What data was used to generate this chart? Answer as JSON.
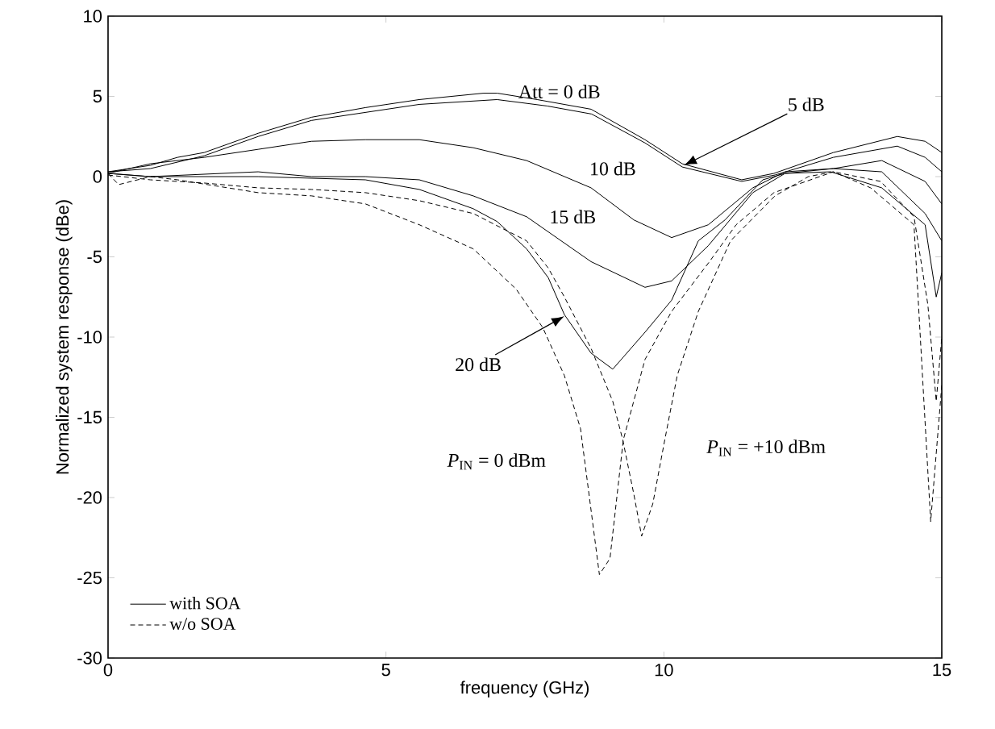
{
  "chart_data": {
    "type": "line",
    "xlabel": "frequency (GHz)",
    "ylabel": "Normalized system response (dBe)",
    "xlim": [
      0,
      15
    ],
    "ylim": [
      -30,
      10
    ],
    "xticks": [
      0,
      5,
      10,
      15
    ],
    "yticks": [
      -30,
      -25,
      -20,
      -15,
      -10,
      -5,
      0,
      5,
      10
    ],
    "legend": "bottom left",
    "series": [
      {
        "name": "with SOA",
        "color": "#000000",
        "line_style": "solid",
        "x": [
          0,
          0.76,
          1.25,
          1.73,
          2.7,
          3.66,
          4.63,
          5.6,
          6.76,
          7.0,
          7.72,
          8.69,
          9.66,
          10.33,
          11.4,
          11.98,
          13.05,
          14.2,
          14.7,
          15
        ],
        "values": [
          0.3,
          0.7,
          1.2,
          1.5,
          2.7,
          3.7,
          4.3,
          4.8,
          5.2,
          5.2,
          4.8,
          4.2,
          2.3,
          0.8,
          -0.2,
          0.2,
          1.5,
          2.5,
          2.2,
          1.5
        ]
      },
      {
        "color": "#000000",
        "line_style": "solid",
        "x": [
          0,
          0.76,
          1.73,
          2.7,
          3.66,
          4.63,
          5.6,
          7.0,
          7.9,
          8.7,
          9.66,
          10.33,
          11.4,
          12,
          13.05,
          14.2,
          14.7,
          15
        ],
        "values": [
          0.3,
          0.5,
          1.3,
          2.5,
          3.5,
          4.0,
          4.5,
          4.8,
          4.4,
          3.9,
          2.1,
          0.6,
          -0.3,
          0.1,
          1.2,
          1.9,
          1.2,
          0.3
        ]
      },
      {
        "color": "#000000",
        "line_style": "solid",
        "x": [
          0,
          0.76,
          1.73,
          2.7,
          3.66,
          4.63,
          5.6,
          6.57,
          7.53,
          8.69,
          9.46,
          10.14,
          10.8,
          11.6,
          12.18,
          13.05,
          13.92,
          14.7,
          15
        ],
        "values": [
          0.2,
          0.8,
          1.2,
          1.7,
          2.2,
          2.3,
          2.3,
          1.8,
          1.0,
          -0.7,
          -2.7,
          -3.8,
          -3.0,
          -0.7,
          0.3,
          0.5,
          1.0,
          -0.3,
          -1.7
        ]
      },
      {
        "color": "#000000",
        "line_style": "solid",
        "x": [
          0,
          0.76,
          2.7,
          3.66,
          4.63,
          5.6,
          6.57,
          7.53,
          8.69,
          9.66,
          10.14,
          10.8,
          11.6,
          12.18,
          13.05,
          13.92,
          14.7,
          15
        ],
        "values": [
          0.2,
          0.0,
          0.3,
          0.0,
          0.0,
          -0.2,
          -1.2,
          -2.5,
          -5.3,
          -6.9,
          -6.5,
          -4.3,
          -1.0,
          0.2,
          0.5,
          0.3,
          -2.3,
          -4.0
        ]
      },
      {
        "color": "#000000",
        "line_style": "solid",
        "x": [
          0,
          0.76,
          2.7,
          4.63,
          5.6,
          6.57,
          7.0,
          7.53,
          7.92,
          8.21,
          8.69,
          9.08,
          9.66,
          10.14,
          10.62,
          11.1,
          11.78,
          12.18,
          13.0,
          13.92,
          14.7,
          14.9,
          15
        ],
        "values": [
          0.2,
          0.0,
          0.0,
          -0.2,
          -0.8,
          -2.0,
          -2.8,
          -4.5,
          -6.3,
          -8.6,
          -11.0,
          -12.0,
          -9.7,
          -7.7,
          -4.0,
          -2.7,
          -0.2,
          0.2,
          0.3,
          -0.7,
          -3.0,
          -7.5,
          -6.0
        ]
      },
      {
        "name": "w/o SOA",
        "color": "#000000",
        "line_style": "dashed",
        "x": [
          0,
          0.19,
          0.76,
          1.25,
          2.7,
          3.66,
          4.63,
          5.6,
          6.57,
          7.34,
          7.82,
          8.21,
          8.5,
          8.84,
          9.03,
          9.27,
          9.66,
          10.14,
          10.82,
          11.3,
          11.98,
          13.05,
          13.72,
          14.5,
          14.8,
          15
        ],
        "values": [
          0.2,
          -0.5,
          0.0,
          -0.2,
          -1.0,
          -1.2,
          -1.7,
          -3.0,
          -4.5,
          -7.0,
          -9.4,
          -12.4,
          -15.7,
          -24.8,
          -23.8,
          -16.4,
          -11.4,
          -8.4,
          -5.3,
          -3.0,
          -1.0,
          0.3,
          -0.7,
          -3.0,
          -21.5,
          -13.0
        ]
      },
      {
        "color": "#000000",
        "line_style": "dashed",
        "x": [
          0,
          0.76,
          1.73,
          2.7,
          3.66,
          4.63,
          5.6,
          6.57,
          7.53,
          7.92,
          8.21,
          8.69,
          9.08,
          9.26,
          9.46,
          9.6,
          9.8,
          10.0,
          10.24,
          10.62,
          11.2,
          12.0,
          12.6,
          13.05,
          13.9,
          14.5,
          14.75,
          14.9,
          15
        ],
        "values": [
          0.1,
          -0.2,
          -0.4,
          -0.7,
          -0.8,
          -1.0,
          -1.5,
          -2.3,
          -4.0,
          -5.7,
          -7.5,
          -10.7,
          -14.0,
          -16.4,
          -19.8,
          -22.4,
          -20.4,
          -16.7,
          -12.4,
          -8.4,
          -4.0,
          -1.2,
          0.0,
          0.3,
          -0.3,
          -2.5,
          -8.0,
          -14.0,
          -10.0
        ]
      }
    ],
    "annotations": [
      "Att = 0 dB",
      {
        "text": "5 dB",
        "x": 10.36,
        "y": 0.7
      },
      "10 dB",
      "15 dB",
      {
        "text": "20 dB",
        "x": 8.21,
        "y": -8.7
      },
      "*P*$_{IN}$ = 0 dBm",
      "*P*$_{IN}$ = +10 dBm"
    ]
  }
}
